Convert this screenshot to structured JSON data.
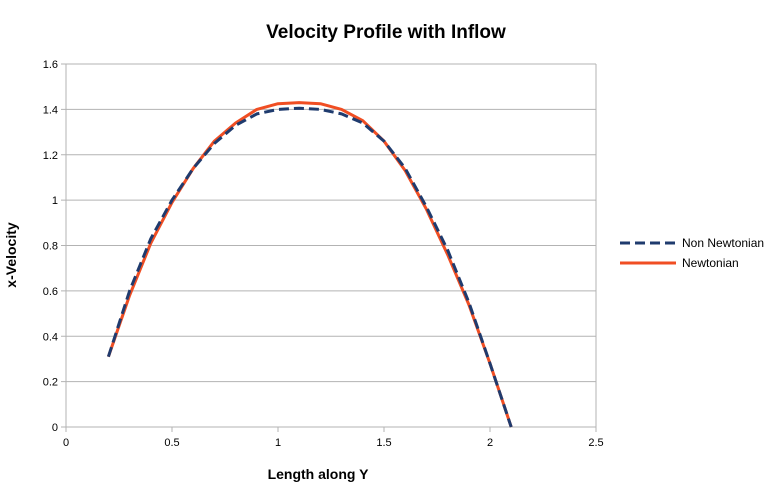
{
  "chart_data": {
    "type": "line",
    "title": "Velocity Profile with Inflow",
    "xlabel": "Length along Y",
    "ylabel": "x-Velocity",
    "xlim": [
      0,
      2.5
    ],
    "ylim": [
      0,
      1.6
    ],
    "x_ticks": [
      "0",
      "0.5",
      "1",
      "1.5",
      "2",
      "2.5"
    ],
    "y_ticks": [
      "0",
      "0.2",
      "0.4",
      "0.6",
      "0.8",
      "1",
      "1.2",
      "1.4",
      "1.6"
    ],
    "grid": "horizontal",
    "legend_position": "right",
    "series": [
      {
        "name": "Non Newtonian",
        "color": "#1f3b6e",
        "style": "dashed",
        "x": [
          0.2,
          0.3,
          0.4,
          0.5,
          0.6,
          0.7,
          0.8,
          0.9,
          1.0,
          1.1,
          1.2,
          1.3,
          1.4,
          1.5,
          1.6,
          1.7,
          1.8,
          1.9,
          2.0,
          2.1
        ],
        "y": [
          0.31,
          0.6,
          0.83,
          1.0,
          1.14,
          1.25,
          1.33,
          1.38,
          1.4,
          1.405,
          1.4,
          1.38,
          1.34,
          1.26,
          1.14,
          0.97,
          0.78,
          0.55,
          0.28,
          0.0
        ]
      },
      {
        "name": "Newtonian",
        "color": "#f04e23",
        "style": "solid",
        "x": [
          0.2,
          0.3,
          0.4,
          0.5,
          0.6,
          0.7,
          0.8,
          0.9,
          1.0,
          1.1,
          1.2,
          1.3,
          1.4,
          1.5,
          1.6,
          1.7,
          1.8,
          1.9,
          2.0,
          2.1
        ],
        "y": [
          0.31,
          0.58,
          0.81,
          0.99,
          1.14,
          1.26,
          1.34,
          1.4,
          1.425,
          1.43,
          1.425,
          1.4,
          1.35,
          1.26,
          1.13,
          0.96,
          0.76,
          0.54,
          0.28,
          0.0
        ]
      }
    ]
  }
}
